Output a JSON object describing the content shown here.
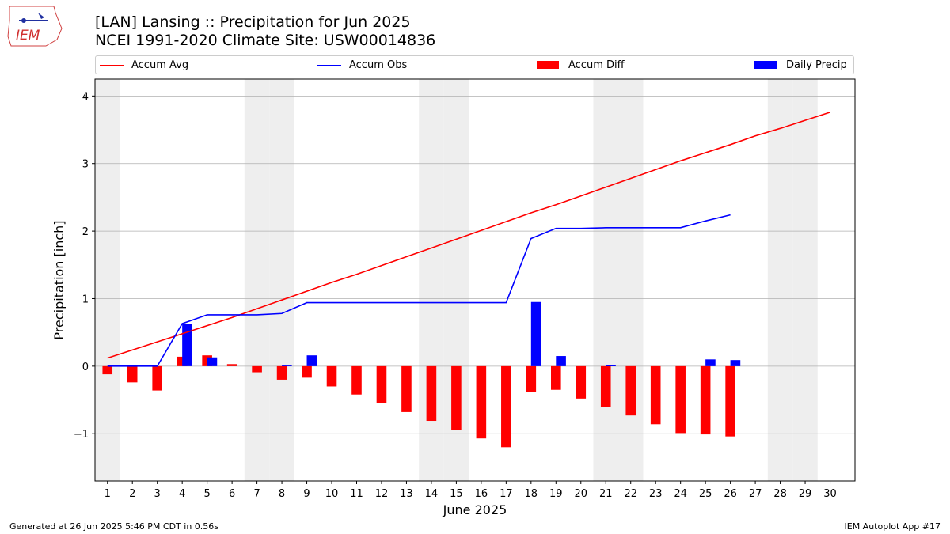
{
  "header": {
    "title_line1": "[LAN] Lansing :: Precipitation for Jun 2025",
    "title_line2": "NCEI 1991-2020 Climate Site: USW00014836",
    "logo_text": "IEM"
  },
  "footer": {
    "left": "Generated at 26 Jun 2025 5:46 PM CDT in 0.56s",
    "right": "IEM Autoplot App #17"
  },
  "colors": {
    "accum_avg": "#ff0000",
    "accum_obs": "#0000ff",
    "accum_diff": "#ff0000",
    "daily_precip": "#0000ff",
    "weekend_band": "#eeeeee",
    "grid": "#b0b0b0"
  },
  "chart_data": {
    "type": "bar",
    "xlabel": "June 2025",
    "ylabel": "Precipitation [inch]",
    "ylim": [
      -1.7,
      4.25
    ],
    "yticks": [
      -1,
      0,
      1,
      2,
      3,
      4
    ],
    "ytick_labels": [
      "−1",
      "0",
      "1",
      "2",
      "3",
      "4"
    ],
    "xlim": [
      0.5,
      31.0
    ],
    "days": [
      1,
      2,
      3,
      4,
      5,
      6,
      7,
      8,
      9,
      10,
      11,
      12,
      13,
      14,
      15,
      16,
      17,
      18,
      19,
      20,
      21,
      22,
      23,
      24,
      25,
      26,
      27,
      28,
      29,
      30
    ],
    "weekend_days": [
      1,
      7,
      8,
      14,
      15,
      21,
      22,
      28,
      29
    ],
    "grid": "horizontal",
    "legend": {
      "placement": "top",
      "entries": [
        "Accum Avg",
        "Accum Obs",
        "Accum Diff",
        "Daily Precip"
      ]
    },
    "series": [
      {
        "name": "Accum Avg",
        "kind": "line",
        "values": [
          0.12,
          0.24,
          0.36,
          0.48,
          0.6,
          0.72,
          0.85,
          0.98,
          1.11,
          1.24,
          1.36,
          1.49,
          1.62,
          1.75,
          1.88,
          2.01,
          2.14,
          2.27,
          2.39,
          2.52,
          2.65,
          2.78,
          2.91,
          3.04,
          3.16,
          3.28,
          3.41,
          3.52,
          3.64,
          3.76
        ]
      },
      {
        "name": "Accum Obs",
        "kind": "line",
        "values": [
          0.0,
          0.0,
          0.0,
          0.63,
          0.76,
          0.76,
          0.76,
          0.78,
          0.94,
          0.94,
          0.94,
          0.94,
          0.94,
          0.94,
          0.94,
          0.94,
          0.94,
          1.89,
          2.04,
          2.04,
          2.05,
          2.05,
          2.05,
          2.05,
          2.15,
          2.24
        ]
      },
      {
        "name": "Accum Diff",
        "kind": "bar",
        "values": [
          -0.12,
          -0.24,
          -0.36,
          0.14,
          0.16,
          0.03,
          -0.09,
          -0.2,
          -0.17,
          -0.3,
          -0.42,
          -0.55,
          -0.68,
          -0.81,
          -0.94,
          -1.07,
          -1.2,
          -0.38,
          -0.35,
          -0.48,
          -0.6,
          -0.73,
          -0.86,
          -0.99,
          -1.01,
          -1.04
        ]
      },
      {
        "name": "Daily Precip",
        "kind": "bar",
        "values": [
          0.0,
          0.0,
          0.0,
          0.63,
          0.13,
          0.0,
          0.0,
          0.02,
          0.16,
          0.0,
          0.0,
          0.0,
          0.0,
          0.0,
          0.0,
          0.0,
          0.0,
          0.95,
          0.15,
          0.0,
          0.01,
          0.0,
          0.0,
          0.0,
          0.1,
          0.09
        ]
      }
    ]
  }
}
